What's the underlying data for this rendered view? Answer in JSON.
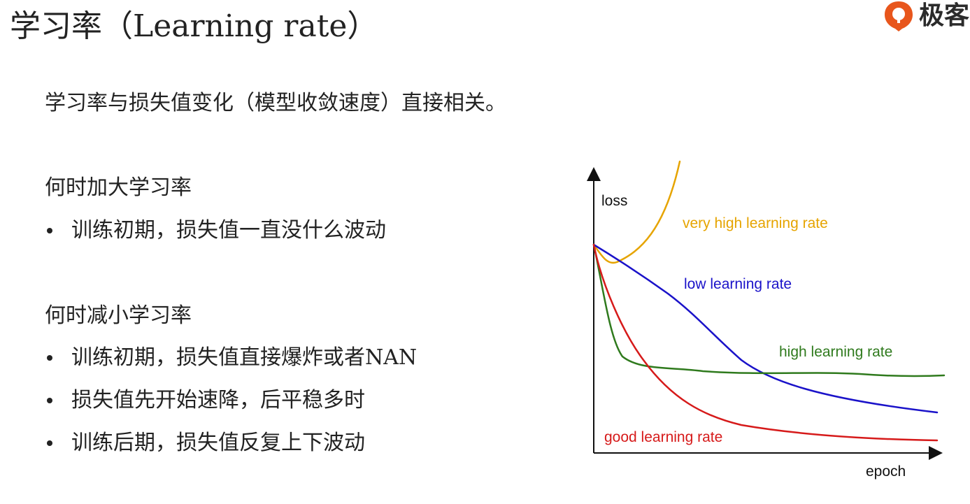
{
  "title": {
    "cjk": "学习率（",
    "latin": "Learning rate",
    "close": "）"
  },
  "logo": {
    "text": "极客",
    "color": "#e8561c"
  },
  "subtitle": "学习率与损失值变化（模型收敛速度）直接相关。",
  "sections": [
    {
      "heading": "何时加大学习率",
      "bullets": [
        {
          "text": "训练初期，损失值一直没什么波动"
        }
      ]
    },
    {
      "heading": "何时减小学习率",
      "bullets": [
        {
          "text": "训练初期，损失值直接爆炸或者 ",
          "suffix": "NAN"
        },
        {
          "text": "损失值先开始速降，后平稳多时"
        },
        {
          "text": "训练后期，损失值反复上下波动"
        }
      ]
    }
  ],
  "chart_data": {
    "type": "line",
    "ylabel": "loss",
    "xlabel": "epoch",
    "axis_ticks": false,
    "grid": false,
    "series": [
      {
        "name": "very high learning rate",
        "color": "#e6a400"
      },
      {
        "name": "low learning rate",
        "color": "#1a12c9"
      },
      {
        "name": "high learning rate",
        "color": "#2f7a1d"
      },
      {
        "name": "good learning rate",
        "color": "#d61a1a"
      }
    ]
  }
}
